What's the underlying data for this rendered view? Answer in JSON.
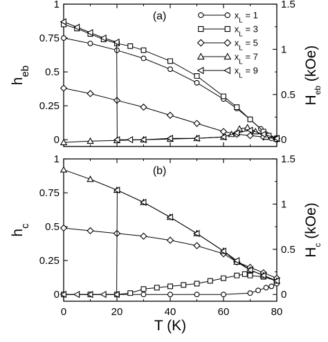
{
  "chart_data": [
    {
      "panel_label": "(a)",
      "type": "scatter",
      "ylabel_left": {
        "main": "h",
        "sub": "eb"
      },
      "ylabel_right": {
        "main": "H",
        "sub": "eb",
        "unit": " (kOe)"
      },
      "xlim": [
        0,
        80
      ],
      "ylim_left": [
        -0.05,
        1.0
      ],
      "ylim_right": [
        -0.075,
        1.5
      ],
      "x_ticks": [
        "0",
        "20",
        "40",
        "60",
        "80"
      ],
      "y_ticks_left": [
        {
          "v": 0,
          "l": "0"
        },
        {
          "v": 0.25,
          "l": "0.25"
        },
        {
          "v": 0.5,
          "l": "0.5"
        },
        {
          "v": 0.75,
          "l": "0.75"
        },
        {
          "v": 1,
          "l": "1"
        }
      ],
      "y_ticks_right": [
        {
          "v": 0,
          "l": "0"
        },
        {
          "v": 0.5,
          "l": "0.5"
        },
        {
          "v": 1,
          "l": "1"
        },
        {
          "v": 1.5,
          "l": "1.5"
        }
      ],
      "legend_position": "top-right",
      "legend": [
        {
          "label": "x",
          "sub": "L",
          "suffix": " = 1",
          "marker": "circle"
        },
        {
          "label": "x",
          "sub": "L",
          "suffix": " = 3",
          "marker": "square"
        },
        {
          "label": "x",
          "sub": "L",
          "suffix": " = 5",
          "marker": "diamond"
        },
        {
          "label": "x",
          "sub": "L",
          "suffix": " = 7",
          "marker": "triangle-up"
        },
        {
          "label": "x",
          "sub": "L",
          "suffix": " = 9",
          "marker": "triangle-left"
        }
      ],
      "series": [
        {
          "marker": "circle",
          "x": [
            0,
            10,
            20,
            30,
            40,
            50,
            60,
            65,
            70,
            74,
            76,
            78,
            80
          ],
          "y": [
            0.75,
            0.71,
            0.66,
            0.6,
            0.52,
            0.42,
            0.3,
            0.23,
            0.15,
            0.08,
            0.04,
            0.01,
            0.0
          ]
        },
        {
          "marker": "square",
          "x": [
            0,
            5,
            10,
            15,
            20,
            25,
            30,
            40,
            50,
            60,
            65,
            70,
            75,
            77,
            80
          ],
          "y": [
            0.85,
            0.82,
            0.78,
            0.74,
            0.71,
            0.69,
            0.66,
            0.58,
            0.47,
            0.32,
            0.24,
            0.15,
            0.06,
            0.03,
            0.01
          ]
        },
        {
          "marker": "diamond",
          "x": [
            0,
            10,
            20,
            30,
            40,
            50,
            60,
            65,
            70,
            75,
            80
          ],
          "y": [
            0.38,
            0.34,
            0.29,
            0.24,
            0.18,
            0.12,
            0.06,
            0.04,
            0.03,
            0.02,
            0.01
          ]
        },
        {
          "marker": "triangle-up",
          "x": [
            0,
            10,
            20,
            30,
            40,
            50,
            60,
            63,
            66,
            69,
            72,
            76,
            80
          ],
          "y": [
            -0.02,
            -0.01,
            -0.005,
            0.0,
            0.005,
            0.01,
            0.02,
            0.04,
            0.08,
            0.09,
            0.06,
            0.02,
            0.005
          ]
        },
        {
          "marker": "triangle-left",
          "x": [
            0,
            5,
            10,
            15,
            19.9,
            20.1,
            25,
            30,
            40,
            50,
            60,
            65,
            70,
            75,
            80
          ],
          "y": [
            0.87,
            0.83,
            0.79,
            0.75,
            0.72,
            0.0,
            0.0,
            0.0,
            0.01,
            0.01,
            0.02,
            0.05,
            0.07,
            0.04,
            0.01
          ]
        }
      ]
    },
    {
      "panel_label": "(b)",
      "type": "scatter",
      "xlabel": {
        "main": "T",
        "unit": " (K)"
      },
      "ylabel_left": {
        "main": "h",
        "sub": "c"
      },
      "ylabel_right": {
        "main": "H",
        "sub": "c",
        "unit": " (kOe)"
      },
      "xlim": [
        0,
        80
      ],
      "ylim_left": [
        -0.05,
        1.0
      ],
      "ylim_right": [
        -0.075,
        1.5
      ],
      "x_ticks": [
        "0",
        "20",
        "40",
        "60",
        "80"
      ],
      "y_ticks_left": [
        {
          "v": 0,
          "l": "0"
        },
        {
          "v": 0.25,
          "l": "0.25"
        },
        {
          "v": 0.5,
          "l": "0.5"
        },
        {
          "v": 0.75,
          "l": "0.75"
        },
        {
          "v": 1,
          "l": "1"
        }
      ],
      "y_ticks_right": [
        {
          "v": 0,
          "l": "0"
        },
        {
          "v": 0.5,
          "l": "0.5"
        },
        {
          "v": 1,
          "l": "1"
        },
        {
          "v": 1.5,
          "l": "1.5"
        }
      ],
      "series": [
        {
          "marker": "circle",
          "x": [
            0,
            10,
            20,
            30,
            40,
            50,
            60,
            70,
            73,
            76,
            78,
            80
          ],
          "y": [
            0.0,
            0.0,
            0.0,
            0.0,
            0.0,
            0.0,
            0.0,
            0.01,
            0.03,
            0.05,
            0.06,
            0.08
          ]
        },
        {
          "marker": "square",
          "x": [
            0,
            10,
            20,
            25,
            30,
            35,
            40,
            45,
            50,
            55,
            60,
            65,
            68,
            70,
            75,
            80
          ],
          "y": [
            0.0,
            0.0,
            0.0,
            0.01,
            0.04,
            0.05,
            0.06,
            0.07,
            0.08,
            0.1,
            0.12,
            0.14,
            0.15,
            0.14,
            0.13,
            0.1
          ]
        },
        {
          "marker": "diamond",
          "x": [
            0,
            10,
            20,
            30,
            40,
            50,
            60,
            65,
            70,
            75,
            80
          ],
          "y": [
            0.49,
            0.47,
            0.45,
            0.43,
            0.4,
            0.36,
            0.3,
            0.24,
            0.2,
            0.16,
            0.12
          ]
        },
        {
          "marker": "triangle-up",
          "x": [
            0,
            10,
            20,
            30,
            40,
            50,
            60,
            65,
            70,
            75,
            80
          ],
          "y": [
            0.92,
            0.85,
            0.77,
            0.68,
            0.57,
            0.45,
            0.32,
            0.24,
            0.18,
            0.14,
            0.1
          ]
        },
        {
          "marker": "triangle-left",
          "x": [
            0,
            5,
            10,
            15,
            19.9,
            20.1,
            30,
            40,
            50,
            60,
            65,
            70,
            75,
            80
          ],
          "y": [
            0.0,
            0.0,
            0.0,
            0.0,
            0.0,
            0.77,
            0.68,
            0.57,
            0.45,
            0.32,
            0.25,
            0.18,
            0.14,
            0.1
          ]
        }
      ]
    }
  ]
}
